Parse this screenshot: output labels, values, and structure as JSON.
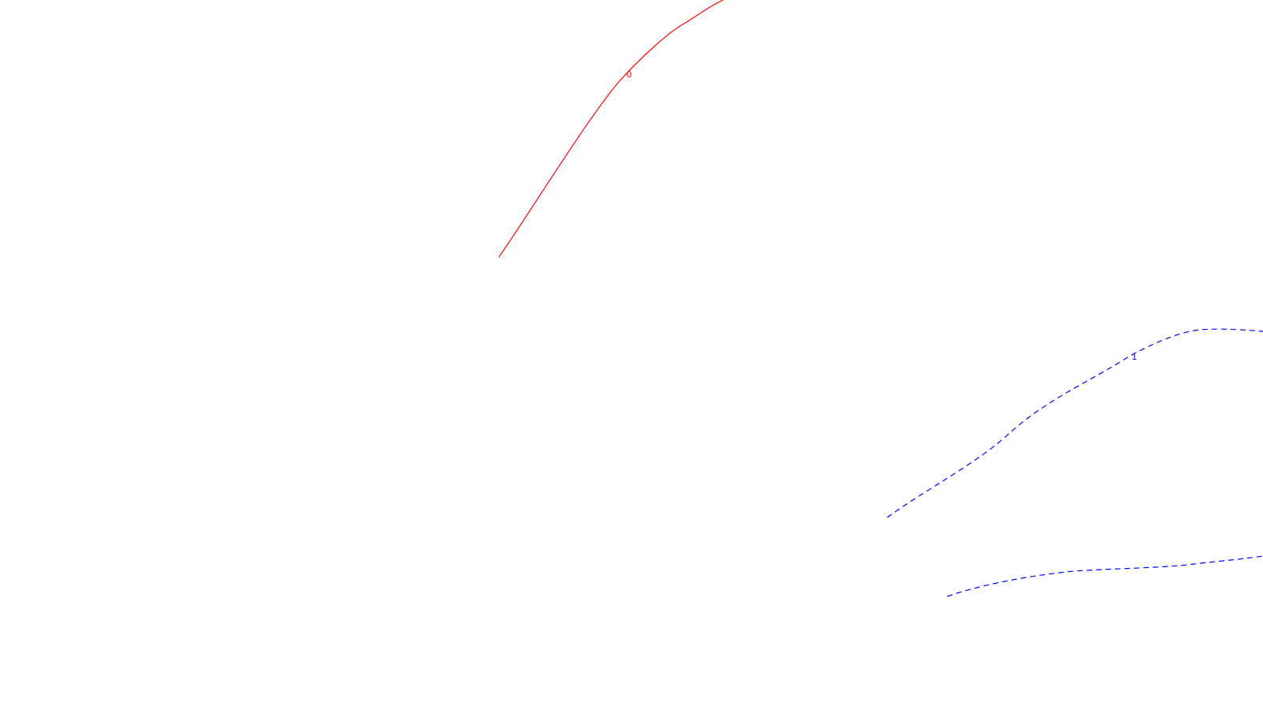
{
  "chart_data": {
    "type": "contour",
    "title": "",
    "xlabel": "",
    "ylabel": "",
    "grid": false,
    "legend": "none",
    "series": [
      {
        "name": "contour-level-0",
        "level_label": "0",
        "color": "#ff0000",
        "style": "solid"
      },
      {
        "name": "contour-level-1-upper",
        "level_label": "1",
        "color": "#0000ff",
        "style": "dashed"
      },
      {
        "name": "contour-level-1-lower",
        "level_label": "",
        "color": "#0000ff",
        "style": "dashed"
      }
    ]
  }
}
